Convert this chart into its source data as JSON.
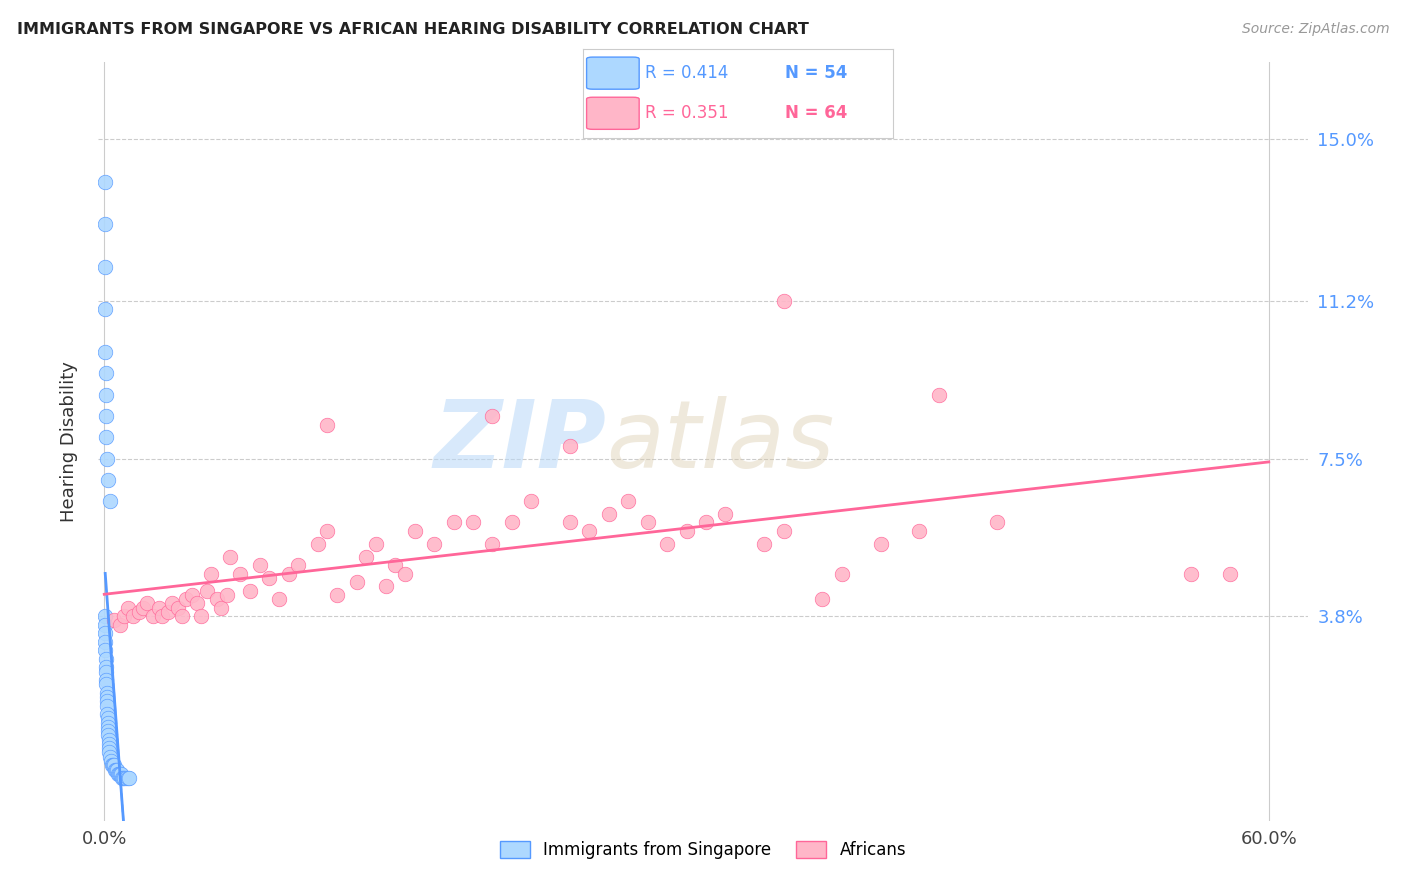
{
  "title": "IMMIGRANTS FROM SINGAPORE VS AFRICAN HEARING DISABILITY CORRELATION CHART",
  "source": "Source: ZipAtlas.com",
  "ylabel_label": "Hearing Disability",
  "ytick_labels": [
    "3.8%",
    "7.5%",
    "11.2%",
    "15.0%"
  ],
  "ytick_values": [
    0.038,
    0.075,
    0.112,
    0.15
  ],
  "xlim": [
    -0.003,
    0.62
  ],
  "ylim": [
    -0.01,
    0.168
  ],
  "color_blue": "#add8ff",
  "color_pink": "#ffb6c8",
  "line_blue": "#5599ff",
  "line_pink": "#ff6699",
  "watermark_zip": "ZIP",
  "watermark_atlas": "atlas",
  "sg_x": [
    0.0002,
    0.0003,
    0.0004,
    0.0005,
    0.0006,
    0.0007,
    0.0008,
    0.0009,
    0.001,
    0.0011,
    0.0012,
    0.0013,
    0.0014,
    0.0015,
    0.0016,
    0.0017,
    0.0018,
    0.0019,
    0.002,
    0.0021,
    0.0022,
    0.0023,
    0.0024,
    0.0025,
    0.003,
    0.0035,
    0.004,
    0.0045,
    0.005,
    0.0055,
    0.006,
    0.0065,
    0.007,
    0.0075,
    0.008,
    0.0085,
    0.009,
    0.0095,
    0.01,
    0.011,
    0.012,
    0.013,
    0.0002,
    0.0003,
    0.0004,
    0.0005,
    0.0006,
    0.0007,
    0.0008,
    0.0009,
    0.001,
    0.0015,
    0.002,
    0.003
  ],
  "sg_y": [
    0.038,
    0.036,
    0.034,
    0.032,
    0.03,
    0.028,
    0.026,
    0.025,
    0.023,
    0.022,
    0.02,
    0.019,
    0.018,
    0.017,
    0.015,
    0.014,
    0.013,
    0.012,
    0.011,
    0.01,
    0.009,
    0.008,
    0.007,
    0.006,
    0.005,
    0.004,
    0.003,
    0.003,
    0.003,
    0.002,
    0.002,
    0.002,
    0.001,
    0.001,
    0.001,
    0.001,
    0.0,
    0.0,
    0.0,
    0.0,
    0.0,
    0.0,
    0.14,
    0.13,
    0.12,
    0.11,
    0.1,
    0.095,
    0.09,
    0.085,
    0.08,
    0.075,
    0.07,
    0.065
  ],
  "af_x": [
    0.005,
    0.008,
    0.01,
    0.012,
    0.015,
    0.018,
    0.02,
    0.022,
    0.025,
    0.028,
    0.03,
    0.033,
    0.035,
    0.038,
    0.04,
    0.042,
    0.045,
    0.048,
    0.05,
    0.053,
    0.055,
    0.058,
    0.06,
    0.063,
    0.065,
    0.07,
    0.075,
    0.08,
    0.085,
    0.09,
    0.095,
    0.1,
    0.11,
    0.115,
    0.12,
    0.13,
    0.135,
    0.14,
    0.145,
    0.15,
    0.155,
    0.16,
    0.17,
    0.18,
    0.19,
    0.2,
    0.21,
    0.22,
    0.24,
    0.25,
    0.26,
    0.27,
    0.28,
    0.29,
    0.3,
    0.31,
    0.32,
    0.34,
    0.35,
    0.38,
    0.4,
    0.42,
    0.46,
    0.56
  ],
  "af_y": [
    0.037,
    0.036,
    0.038,
    0.04,
    0.038,
    0.039,
    0.04,
    0.041,
    0.038,
    0.04,
    0.038,
    0.039,
    0.041,
    0.04,
    0.038,
    0.042,
    0.043,
    0.041,
    0.038,
    0.044,
    0.048,
    0.042,
    0.04,
    0.043,
    0.052,
    0.048,
    0.044,
    0.05,
    0.047,
    0.042,
    0.048,
    0.05,
    0.055,
    0.058,
    0.043,
    0.046,
    0.052,
    0.055,
    0.045,
    0.05,
    0.048,
    0.058,
    0.055,
    0.06,
    0.06,
    0.055,
    0.06,
    0.065,
    0.06,
    0.058,
    0.062,
    0.065,
    0.06,
    0.055,
    0.058,
    0.06,
    0.062,
    0.055,
    0.058,
    0.048,
    0.055,
    0.058,
    0.06,
    0.048
  ],
  "af_extra_x": [
    0.35,
    0.43,
    0.2,
    0.115,
    0.24,
    0.37,
    0.58
  ],
  "af_extra_y": [
    0.112,
    0.09,
    0.085,
    0.083,
    0.078,
    0.042,
    0.048
  ]
}
